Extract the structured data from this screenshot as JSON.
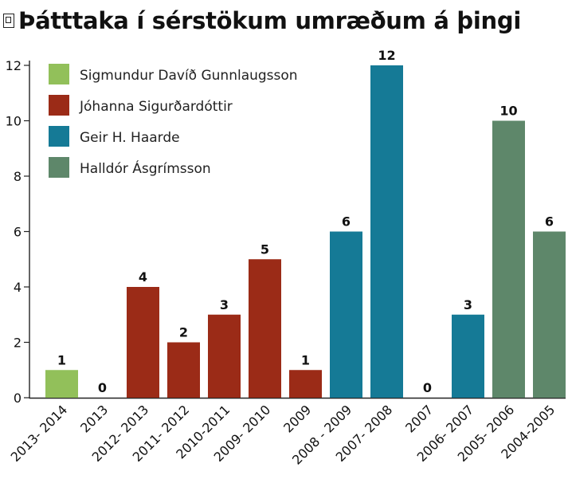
{
  "title": "Þátttaka í sérstökum umræðum á þingi",
  "title_icon": "document-icon",
  "chart_data": {
    "type": "bar",
    "title": "Þátttaka í sérstökum umræðum á þingi",
    "xlabel": "",
    "ylabel": "",
    "ylim": [
      0,
      12
    ],
    "yticks": [
      0,
      2,
      4,
      6,
      8,
      10,
      12
    ],
    "grid": false,
    "legend_position": "top-left",
    "categories": [
      "2013- 2014",
      "2013",
      "2012- 2013",
      "2011- 2012",
      "2010-2011",
      "2009- 2010",
      "2009",
      "2008 - 2009",
      "2007- 2008",
      "2007",
      "2006- 2007",
      "2005- 2006",
      "2004-2005"
    ],
    "values": [
      1,
      0,
      4,
      2,
      3,
      5,
      1,
      6,
      12,
      0,
      3,
      10,
      6
    ],
    "bar_series": [
      0,
      0,
      1,
      1,
      1,
      1,
      1,
      2,
      2,
      2,
      2,
      3,
      3
    ],
    "series": [
      {
        "name": "Sigmundur Davíð Gunnlaugsson",
        "color": "#92c05a"
      },
      {
        "name": "Jóhanna Sigurðardóttir",
        "color": "#9b2b17"
      },
      {
        "name": "Geir H. Haarde",
        "color": "#157a96"
      },
      {
        "name": "Halldór Ásgrímsson",
        "color": "#5e876a"
      }
    ]
  }
}
